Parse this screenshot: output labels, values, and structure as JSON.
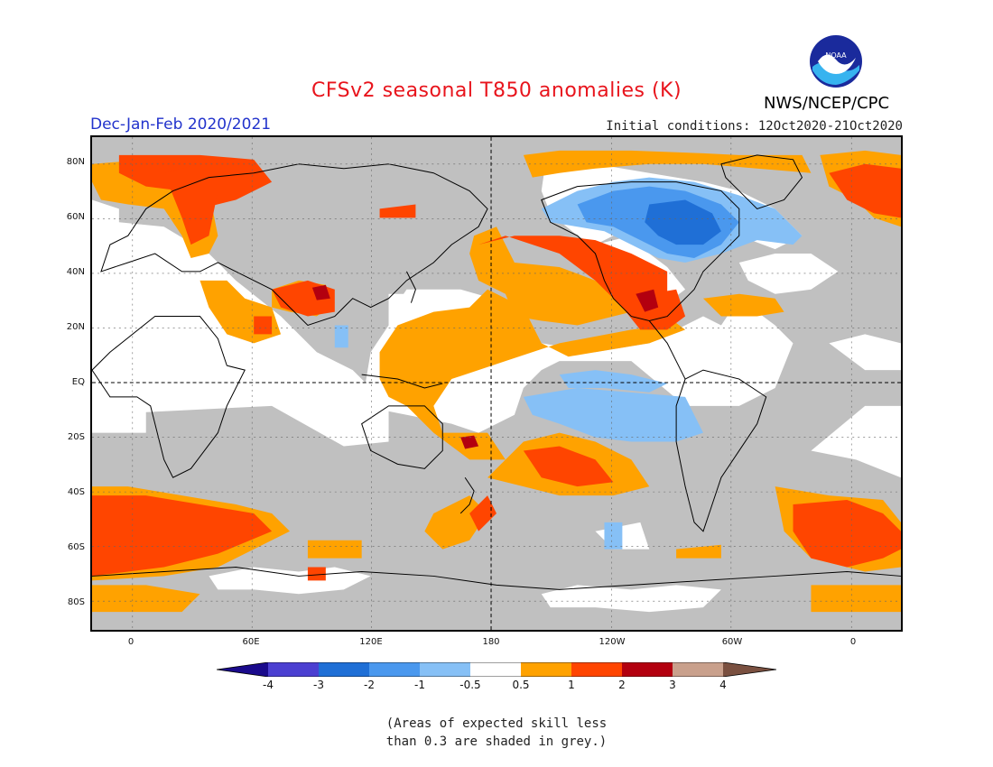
{
  "header": {
    "title": "CFSv2 seasonal T850 anomalies (K)",
    "season": "Dec-Jan-Feb 2020/2021",
    "initial_conditions": "Initial conditions: 12Oct2020-21Oct2020",
    "agency": "NWS/NCEP/CPC",
    "logo_text": "NOAA"
  },
  "map": {
    "lat_labels": [
      "80N",
      "60N",
      "40N",
      "20N",
      "EQ",
      "20S",
      "40S",
      "60S",
      "80S"
    ],
    "lon_labels": [
      "0",
      "60E",
      "120E",
      "180",
      "120W",
      "60W",
      "0"
    ]
  },
  "legend": {
    "labels": [
      "-4",
      "-3",
      "-2",
      "-1",
      "-0.5",
      "0.5",
      "1",
      "2",
      "3",
      "4"
    ],
    "colors": {
      "neg4": "#1a0a8c",
      "neg3": "#4b3fd1",
      "neg2": "#1f6fd6",
      "neg1": "#4a98ee",
      "neg05": "#86c0f6",
      "neutral": "#ffffff",
      "pos05": "#ffa200",
      "pos1": "#ff4500",
      "pos2": "#b3000f",
      "pos3": "#c9a08c",
      "pos4": "#7a5040"
    }
  },
  "note": {
    "line1": "(Areas of expected skill less",
    "line2": "than 0.3 are shaded in grey.)"
  }
}
